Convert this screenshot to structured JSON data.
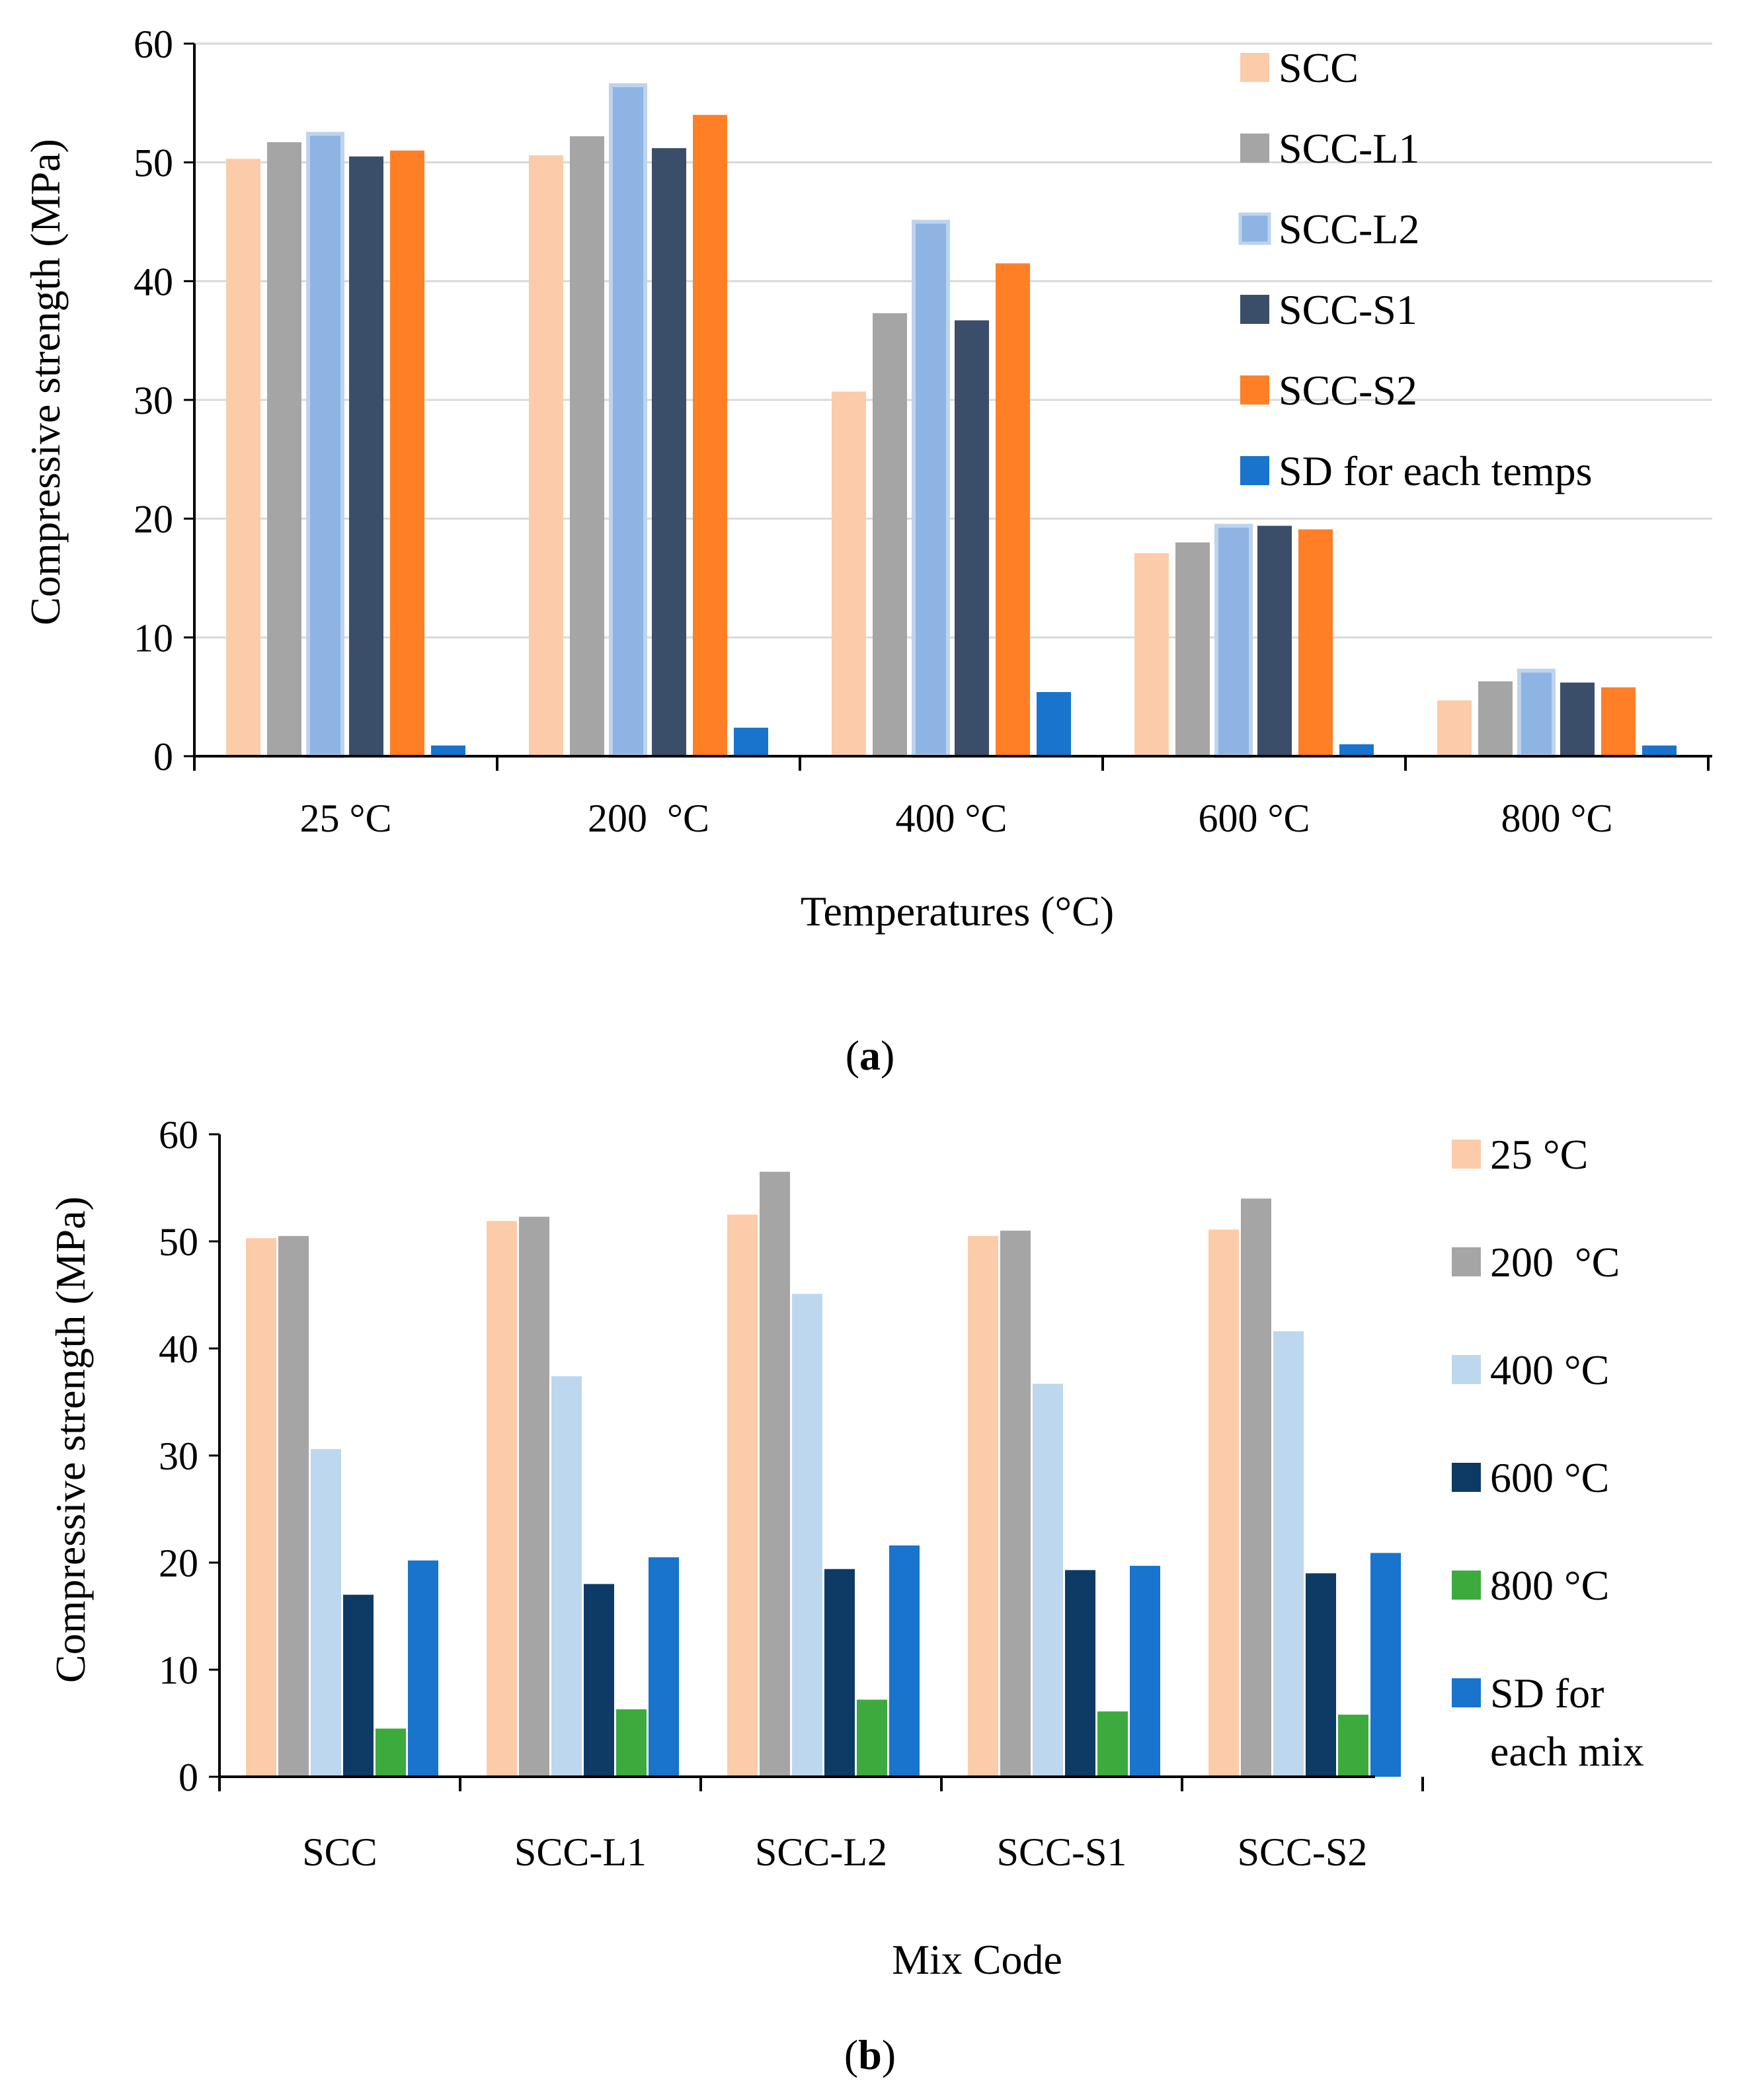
{
  "chart_data": [
    {
      "id": "a",
      "type": "bar",
      "panel_label": "a",
      "title": "",
      "xlabel": "Temperatures (°C)",
      "ylabel": "Compressive strength (MPa)",
      "ylim": [
        0,
        60
      ],
      "yticks": [
        0,
        10,
        20,
        30,
        40,
        50,
        60
      ],
      "grid": true,
      "legend_position": "top-right",
      "categories": [
        "25 °C",
        "200  °C",
        "400 °C",
        "600 °C",
        "800 °C"
      ],
      "series": [
        {
          "name": "SCC",
          "color": "#FCCBAA",
          "values": [
            50.3,
            50.6,
            30.7,
            17.1,
            4.7
          ]
        },
        {
          "name": "SCC-L1",
          "color": "#A5A5A5",
          "values": [
            51.7,
            52.2,
            37.3,
            18.0,
            6.3
          ]
        },
        {
          "name": "SCC-L2",
          "color": "#8EB4E3",
          "stroke": "#BDD3EE",
          "values": [
            52.4,
            56.5,
            45.0,
            19.4,
            7.2
          ]
        },
        {
          "name": "SCC-S1",
          "color": "#3B4E69",
          "values": [
            50.5,
            51.2,
            36.7,
            19.4,
            6.2
          ]
        },
        {
          "name": "SCC-S2",
          "color": "#FF7F27",
          "values": [
            51.0,
            54.0,
            41.5,
            19.1,
            5.8
          ]
        },
        {
          "name": "SD for each temps",
          "color": "#1874CD",
          "values": [
            0.9,
            2.4,
            5.4,
            1.0,
            0.9
          ]
        }
      ]
    },
    {
      "id": "b",
      "type": "bar",
      "panel_label": "b",
      "title": "",
      "xlabel": "Mix Code",
      "ylabel": "Compressive strength (MPa)",
      "ylim": [
        0,
        60
      ],
      "yticks": [
        0,
        10,
        20,
        30,
        40,
        50,
        60
      ],
      "grid": false,
      "legend_position": "right",
      "categories": [
        "SCC",
        "SCC-L1",
        "SCC-L2",
        "SCC-S1",
        "SCC-S2"
      ],
      "series": [
        {
          "name": "25 °C",
          "color": "#FCCBAA",
          "values": [
            50.3,
            51.9,
            52.5,
            50.5,
            51.1
          ]
        },
        {
          "name": "200  °C",
          "color": "#A5A5A5",
          "values": [
            50.5,
            52.3,
            56.5,
            51.0,
            54.0
          ]
        },
        {
          "name": "400 °C",
          "color": "#BDD7EE",
          "values": [
            30.6,
            37.4,
            45.1,
            36.7,
            41.6
          ]
        },
        {
          "name": "600 °C",
          "color": "#0E3A66",
          "values": [
            17.0,
            18.0,
            19.4,
            19.3,
            19.0
          ]
        },
        {
          "name": "800 °C",
          "color": "#3DAA3D",
          "values": [
            4.5,
            6.3,
            7.2,
            6.1,
            5.8
          ]
        },
        {
          "name": "SD for each mix",
          "name_lines": [
            "SD for",
            "each mix"
          ],
          "color": "#1874CD",
          "values": [
            20.2,
            20.5,
            21.6,
            19.7,
            20.9
          ]
        }
      ]
    }
  ]
}
